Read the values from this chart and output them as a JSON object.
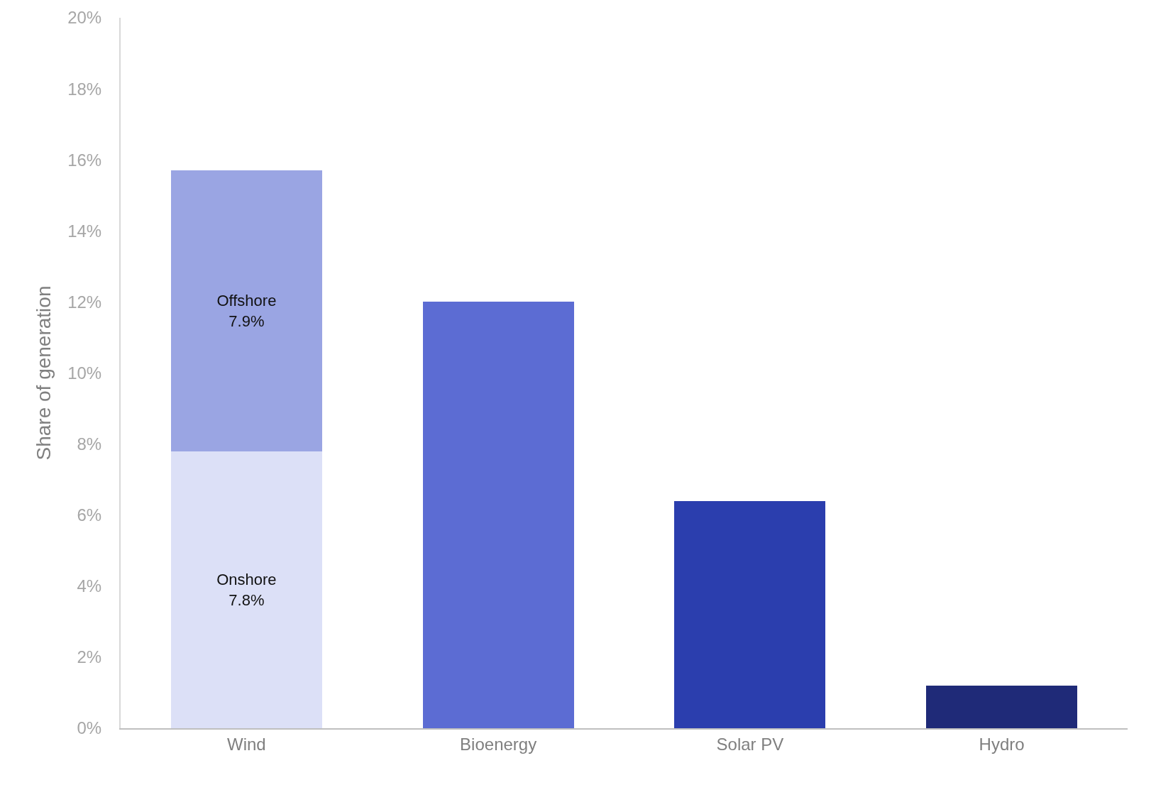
{
  "chart_data": {
    "type": "bar",
    "stacked": true,
    "ylabel": "Share of generation",
    "categories": [
      "Wind",
      "Bioenergy",
      "Solar PV",
      "Hydro"
    ],
    "series": [
      {
        "name": "Onshore",
        "color": "#dce0f7",
        "values": [
          7.8,
          null,
          null,
          null
        ],
        "value_labels": [
          "7.8%",
          null,
          null,
          null
        ]
      },
      {
        "name": "Offshore",
        "color": "#9aa5e3",
        "values": [
          7.9,
          null,
          null,
          null
        ],
        "value_labels": [
          "7.9%",
          null,
          null,
          null
        ]
      },
      {
        "colors": [
          "#5c6cd3",
          "#5c6cd3",
          "#2b3eae",
          "#1f2a78"
        ],
        "values": [
          null,
          12.0,
          6.4,
          1.2
        ]
      }
    ],
    "ylim": [
      0,
      20
    ],
    "yticks": [
      {
        "value": 0,
        "label": "0%"
      },
      {
        "value": 2,
        "label": "2%"
      },
      {
        "value": 4,
        "label": "4%"
      },
      {
        "value": 6,
        "label": "6%"
      },
      {
        "value": 8,
        "label": "8%"
      },
      {
        "value": 10,
        "label": "10%"
      },
      {
        "value": 12,
        "label": "12%"
      },
      {
        "value": 14,
        "label": "14%"
      },
      {
        "value": 16,
        "label": "16%"
      },
      {
        "value": 18,
        "label": "18%"
      },
      {
        "value": 20,
        "label": "20%"
      }
    ],
    "grid": false,
    "legend": false
  }
}
